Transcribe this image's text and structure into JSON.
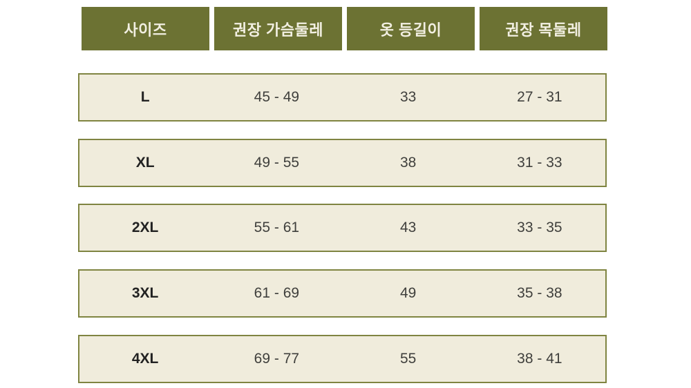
{
  "chart_data": {
    "type": "table",
    "title": "",
    "columns": [
      "사이즈",
      "권장 가슴둘레",
      "옷 등길이",
      "권장 목둘레"
    ],
    "rows": [
      [
        "L",
        "45 - 49",
        "33",
        "27 - 31"
      ],
      [
        "XL",
        "49 - 55",
        "38",
        "31 - 33"
      ],
      [
        "2XL",
        "55 - 61",
        "43",
        "33 - 35"
      ],
      [
        "3XL",
        "61 - 69",
        "49",
        "35 - 38"
      ],
      [
        "4XL",
        "69 - 77",
        "55",
        "38 - 41"
      ]
    ]
  },
  "colors": {
    "page_bg": "#ffffff",
    "header_bg": "#6c7233",
    "header_text": "#f2efe2",
    "row_bg": "#f0ecdc",
    "row_border": "#7f8441",
    "size_text": "#222222",
    "value_text": "#3f3f3c"
  }
}
